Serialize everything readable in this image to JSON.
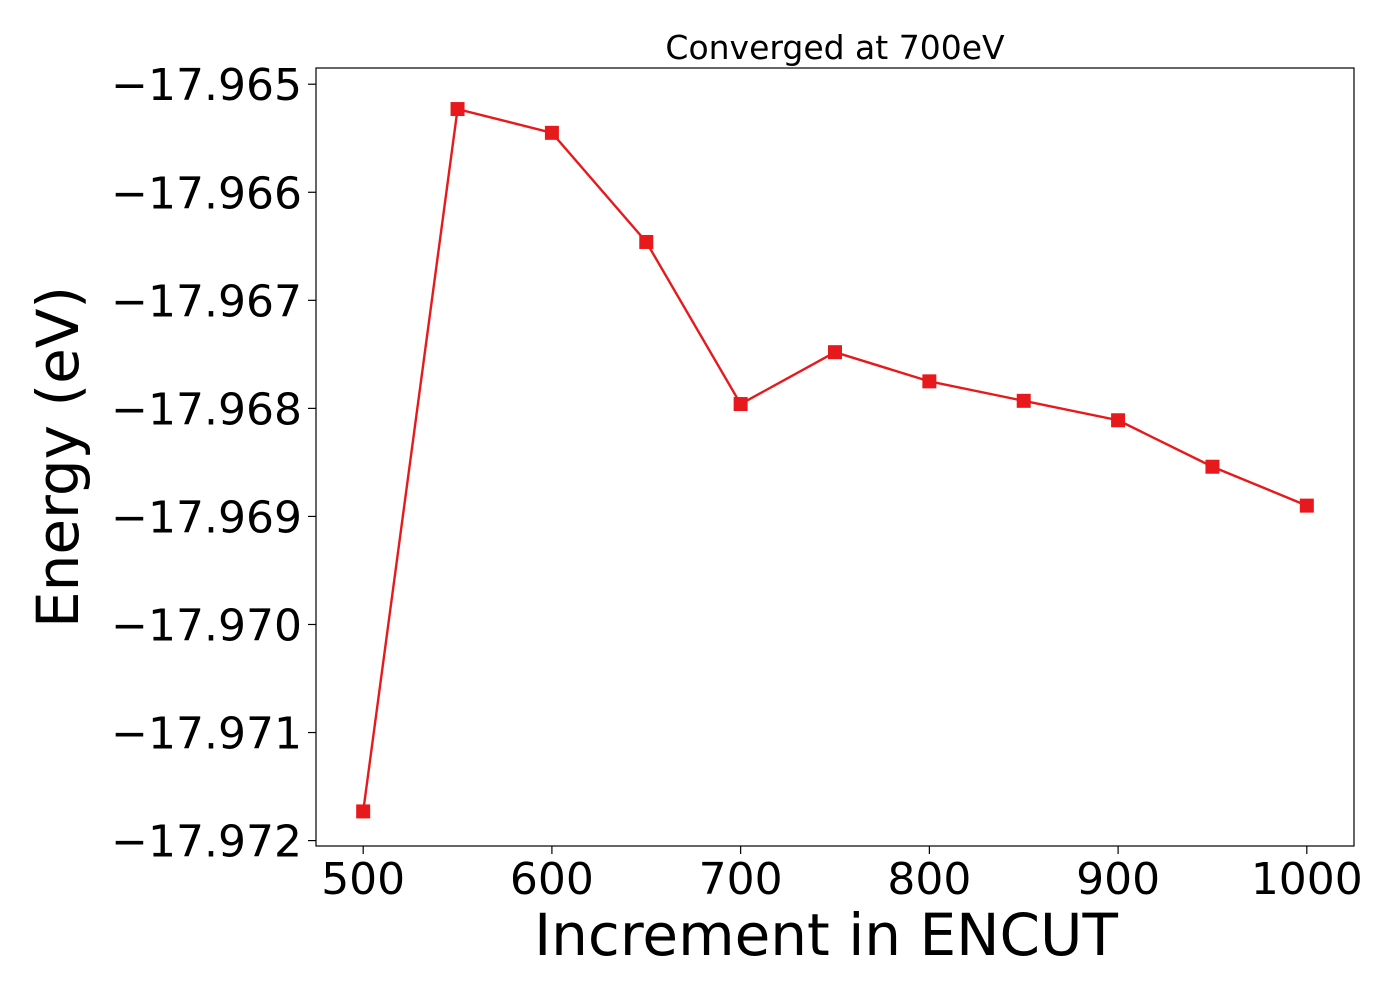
{
  "chart_data": {
    "type": "line",
    "title": "Converged at 700eV",
    "xlabel": "Increment in ENCUT",
    "ylabel": "Energy (eV)",
    "x": [
      500,
      550,
      600,
      650,
      700,
      750,
      800,
      850,
      900,
      950,
      1000
    ],
    "series": [
      {
        "color": "#e8191c",
        "marker": "square",
        "values": [
          -17.97173,
          -17.96523,
          -17.96545,
          -17.96646,
          -17.96796,
          -17.96748,
          -17.96775,
          -17.96793,
          -17.96811,
          -17.96854,
          -17.9689
        ]
      }
    ],
    "xlim": [
      475,
      1025
    ],
    "ylim": [
      -17.97205,
      -17.96485
    ],
    "xticks": [
      500,
      600,
      700,
      800,
      900,
      1000
    ],
    "xtick_labels": [
      "500",
      "600",
      "700",
      "800",
      "900",
      "1000"
    ],
    "yticks": [
      -17.965,
      -17.966,
      -17.967,
      -17.968,
      -17.969,
      -17.97,
      -17.971,
      -17.972
    ],
    "ytick_labels": [
      "−17.965",
      "−17.966",
      "−17.967",
      "−17.968",
      "−17.969",
      "−17.970",
      "−17.971",
      "−17.972"
    ],
    "grid": false,
    "legend": "none"
  }
}
